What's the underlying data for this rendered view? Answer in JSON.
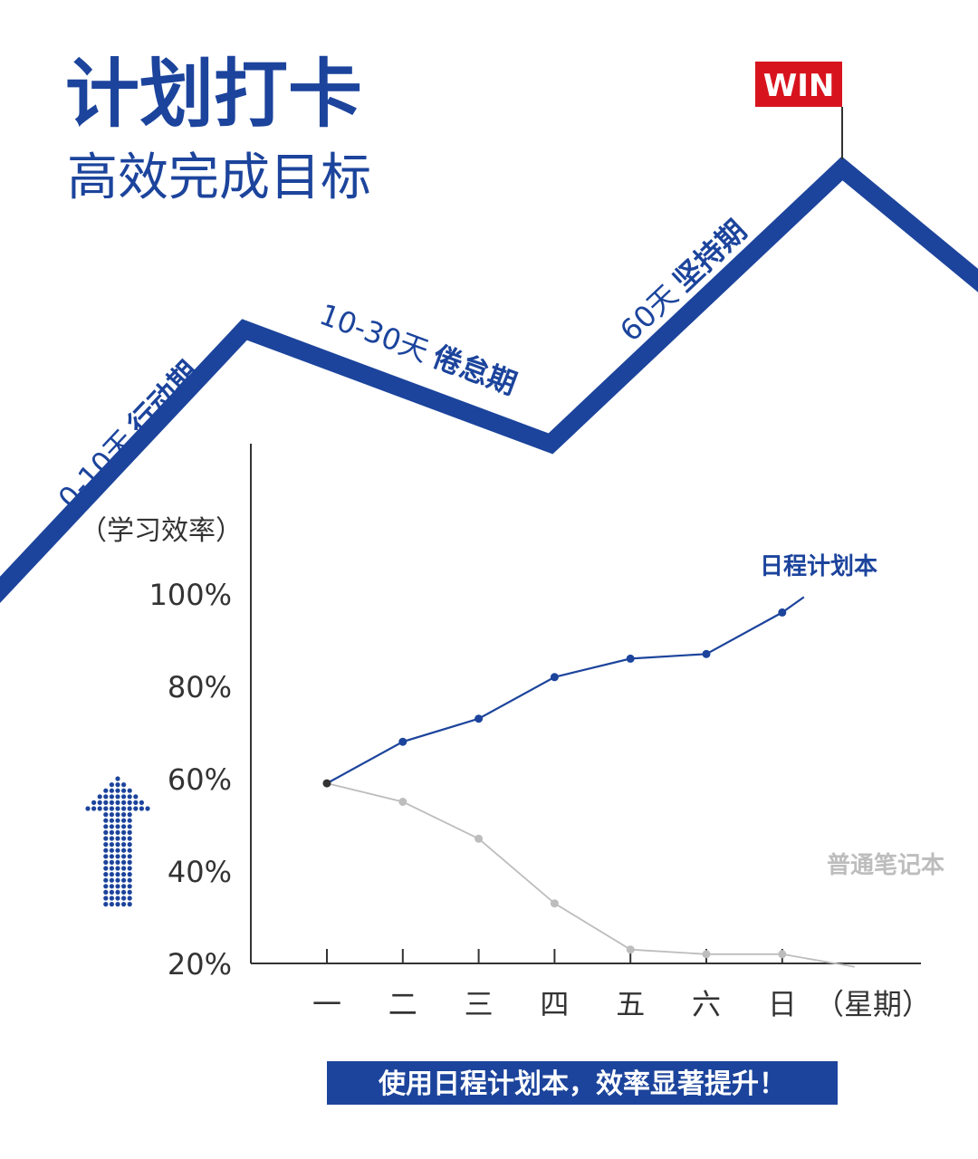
{
  "poster": {
    "title": "计划打卡",
    "subtitle": "高效完成目标",
    "win_label": "WIN",
    "phases": [
      {
        "days": "0-10天",
        "name": "行动期"
      },
      {
        "days": "10-30天",
        "name": "倦怠期"
      },
      {
        "days": "60天",
        "name": "坚持期"
      }
    ],
    "footer_banner": "使用日程计划本，效率显著提升！",
    "colors": {
      "brand_blue": "#1c449c",
      "accent_red": "#d7141e",
      "gray_series": "#bdbdbd",
      "text_dark": "#333333"
    },
    "icons": [
      "dotted-up-arrow-icon",
      "flag-icon"
    ]
  },
  "chart_data": {
    "type": "line",
    "ylabel": "（学习效率）",
    "xlabel": "（星期）",
    "categories": [
      "一",
      "二",
      "三",
      "四",
      "五",
      "六",
      "日"
    ],
    "y_ticks": [
      "100%",
      "80%",
      "60%",
      "40%",
      "20%"
    ],
    "ylim": [
      10,
      110
    ],
    "grid": false,
    "series": [
      {
        "name": "日程计划本",
        "values": [
          59,
          68,
          73,
          82,
          86,
          87,
          96
        ],
        "color": "#1c449c"
      },
      {
        "name": "普通笔记本",
        "values": [
          59,
          55,
          47,
          33,
          23,
          22,
          22
        ],
        "color": "#bdbdbd"
      }
    ]
  }
}
